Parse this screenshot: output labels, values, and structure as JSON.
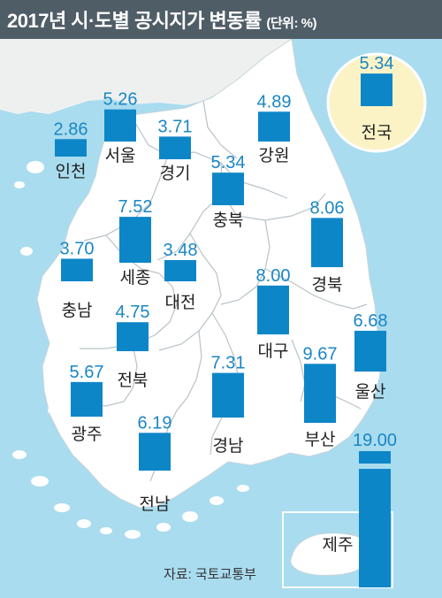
{
  "chart_data": {
    "type": "bar",
    "title": "2017년 시·도별 공시지가 변동률",
    "unit_note": "(단위: %)",
    "categories": [
      "인천",
      "서울",
      "경기",
      "강원",
      "충북",
      "세종",
      "충남",
      "대전",
      "경북",
      "대구",
      "울산",
      "전북",
      "광주",
      "경남",
      "부산",
      "전남",
      "제주",
      "전국"
    ],
    "values": [
      2.86,
      5.26,
      3.71,
      4.89,
      5.34,
      7.52,
      3.7,
      3.48,
      8.06,
      8.0,
      6.68,
      4.75,
      5.67,
      7.31,
      9.67,
      6.19,
      19.0,
      5.34
    ],
    "value_labels": [
      "2.86",
      "5.26",
      "3.71",
      "4.89",
      "5.34",
      "7.52",
      "3.70",
      "3.48",
      "8.06",
      "8.00",
      "6.68",
      "4.75",
      "5.67",
      "7.31",
      "9.67",
      "6.19",
      "19.00",
      "5.34"
    ],
    "bar_color": "#0d86c8",
    "highlight": "전국",
    "axis_break": "제주"
  },
  "source": "자료: 국토교통부",
  "colors": {
    "header": "#4f5d67",
    "sea": "#a9dcef",
    "land": "#ffffff",
    "foreign_land": "#eef0f0",
    "national_circle": "#fbf3c6"
  }
}
